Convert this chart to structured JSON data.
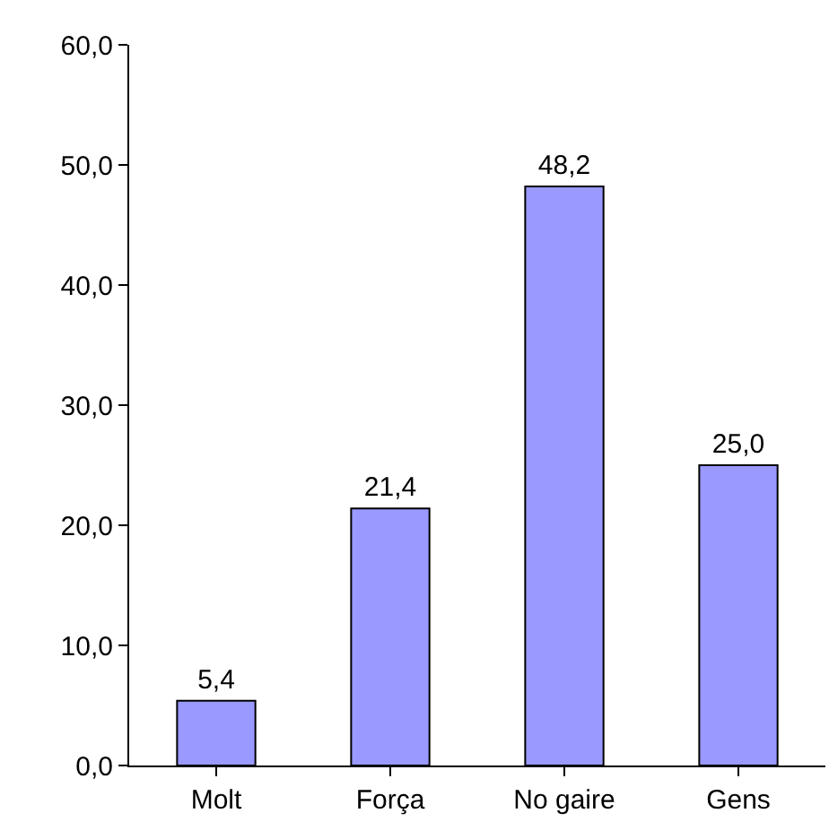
{
  "chart_data": {
    "type": "bar",
    "categories": [
      "Molt",
      "Força",
      "No gaire",
      "Gens"
    ],
    "values": [
      5.4,
      21.4,
      48.2,
      25.0
    ],
    "value_labels": [
      "5,4",
      "21,4",
      "48,2",
      "25,0"
    ],
    "color": "#9999ff",
    "ylim": [
      0,
      60
    ],
    "yticks": [
      {
        "value": 0,
        "label": "0,0"
      },
      {
        "value": 10,
        "label": "10,0"
      },
      {
        "value": 20,
        "label": "20,0"
      },
      {
        "value": 30,
        "label": "30,0"
      },
      {
        "value": 40,
        "label": "40,0"
      },
      {
        "value": 50,
        "label": "50,0"
      },
      {
        "value": 60,
        "label": "60,0"
      }
    ],
    "grid": false,
    "legend": false
  }
}
